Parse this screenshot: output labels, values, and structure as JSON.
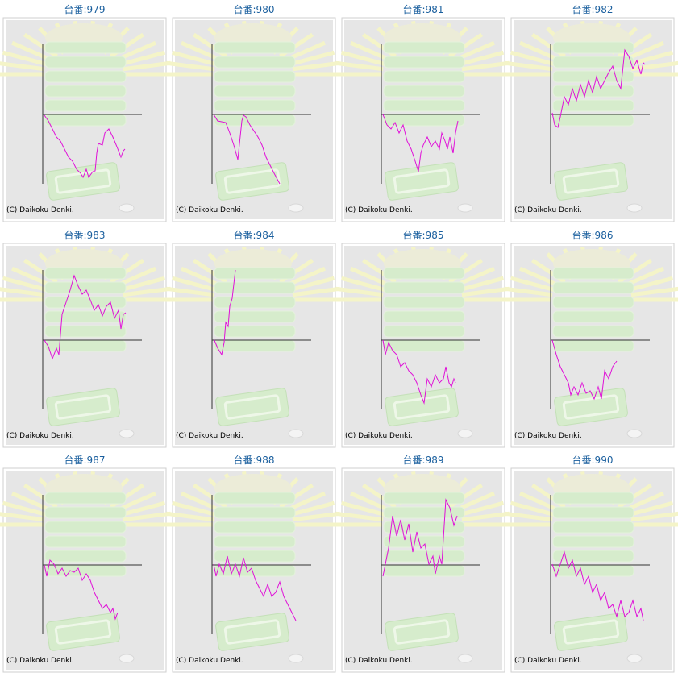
{
  "chart_data": [
    {
      "type": "line",
      "title": "台番:979",
      "credit": "(C) Daikoku Denki.",
      "xlim": [
        0,
        123
      ],
      "ylim": [
        -86,
        87
      ],
      "color": "#e010d8",
      "x": [
        2,
        7,
        12,
        17,
        22,
        27,
        32,
        37,
        42,
        47,
        50,
        54,
        57,
        62,
        65,
        67,
        69,
        74,
        77,
        82,
        87,
        92,
        97,
        100,
        102
      ],
      "values": [
        -1,
        -8,
        -18,
        -28,
        -33,
        -43,
        -53,
        -58,
        -68,
        -73,
        -78,
        -68,
        -78,
        -71,
        -70,
        -48,
        -36,
        -38,
        -23,
        -18,
        -28,
        -40,
        -53,
        -45,
        -43
      ]
    },
    {
      "type": "line",
      "title": "台番:980",
      "credit": "(C) Daikoku Denki.",
      "xlim": [
        0,
        123
      ],
      "ylim": [
        -86,
        87
      ],
      "color": "#e010d8",
      "x": [
        2,
        7,
        17,
        22,
        27,
        32,
        37,
        39,
        42,
        47,
        57,
        62,
        67,
        72,
        77,
        84
      ],
      "values": [
        0,
        -8,
        -10,
        -23,
        -38,
        -56,
        -8,
        -1,
        -3,
        -13,
        -28,
        -38,
        -53,
        -63,
        -73,
        -86
      ]
    },
    {
      "type": "line",
      "title": "台番:981",
      "credit": "(C) Daikoku Denki.",
      "xlim": [
        0,
        123
      ],
      "ylim": [
        -86,
        87
      ],
      "color": "#e010d8",
      "x": [
        2,
        7,
        12,
        17,
        22,
        27,
        32,
        37,
        42,
        46,
        49,
        52,
        57,
        62,
        67,
        72,
        75,
        79,
        82,
        85,
        89,
        92,
        95
      ],
      "values": [
        0,
        -13,
        -18,
        -10,
        -23,
        -13,
        -33,
        -43,
        -58,
        -71,
        -48,
        -38,
        -28,
        -40,
        -33,
        -43,
        -23,
        -33,
        -43,
        -28,
        -48,
        -23,
        -8
      ]
    },
    {
      "type": "line",
      "title": "台番:982",
      "credit": "(C) Daikoku Denki.",
      "xlim": [
        0,
        123
      ],
      "ylim": [
        -86,
        87
      ],
      "color": "#e010d8",
      "x": [
        2,
        5,
        9,
        12,
        17,
        22,
        27,
        32,
        37,
        42,
        47,
        52,
        57,
        62,
        67,
        72,
        77,
        82,
        87,
        92,
        97,
        102,
        107,
        112,
        115,
        117
      ],
      "values": [
        2,
        -13,
        -16,
        -3,
        22,
        12,
        32,
        17,
        37,
        22,
        42,
        27,
        47,
        32,
        42,
        52,
        60,
        42,
        32,
        80,
        72,
        57,
        67,
        50,
        64,
        62
      ]
    },
    {
      "type": "line",
      "title": "台番:983",
      "credit": "(C) Daikoku Denki.",
      "xlim": [
        0,
        123
      ],
      "ylim": [
        -86,
        87
      ],
      "color": "#e010d8",
      "x": [
        2,
        7,
        12,
        17,
        20,
        24,
        29,
        34,
        39,
        44,
        49,
        54,
        59,
        64,
        69,
        74,
        79,
        84,
        89,
        94,
        97,
        100,
        103
      ],
      "values": [
        0,
        -8,
        -23,
        -10,
        -18,
        32,
        47,
        62,
        80,
        67,
        57,
        62,
        50,
        37,
        44,
        30,
        42,
        47,
        27,
        37,
        14,
        32,
        34
      ]
    },
    {
      "type": "line",
      "title": "台番:984",
      "credit": "(C) Daikoku Denki.",
      "xlim": [
        0,
        123
      ],
      "ylim": [
        -86,
        87
      ],
      "color": "#e010d8",
      "x": [
        2,
        7,
        12,
        15,
        17,
        20,
        22,
        25,
        29
      ],
      "values": [
        2,
        -10,
        -18,
        -3,
        22,
        17,
        42,
        52,
        87
      ]
    },
    {
      "type": "line",
      "title": "台番:985",
      "credit": "(C) Daikoku Denki.",
      "xlim": [
        0,
        123
      ],
      "ylim": [
        -86,
        87
      ],
      "color": "#e010d8",
      "x": [
        2,
        5,
        9,
        14,
        19,
        24,
        29,
        34,
        39,
        44,
        49,
        53,
        57,
        62,
        67,
        72,
        77,
        80,
        84,
        87,
        90,
        92
      ],
      "values": [
        0,
        -18,
        -3,
        -13,
        -18,
        -33,
        -28,
        -38,
        -43,
        -53,
        -68,
        -78,
        -48,
        -58,
        -43,
        -53,
        -48,
        -33,
        -53,
        -58,
        -48,
        -53
      ]
    },
    {
      "type": "line",
      "title": "台番:986",
      "credit": "(C) Daikoku Denki.",
      "xlim": [
        0,
        123
      ],
      "ylim": [
        -86,
        87
      ],
      "color": "#e010d8",
      "x": [
        2,
        7,
        12,
        17,
        22,
        25,
        29,
        34,
        39,
        44,
        49,
        54,
        59,
        63,
        67,
        72,
        77,
        82
      ],
      "values": [
        0,
        -18,
        -33,
        -43,
        -53,
        -68,
        -58,
        -68,
        -53,
        -66,
        -63,
        -73,
        -58,
        -73,
        -38,
        -48,
        -33,
        -26
      ]
    },
    {
      "type": "line",
      "title": "台番:987",
      "credit": "(C) Daikoku Denki.",
      "xlim": [
        0,
        123
      ],
      "ylim": [
        -86,
        87
      ],
      "color": "#e010d8",
      "x": [
        2,
        5,
        9,
        14,
        19,
        24,
        29,
        34,
        39,
        44,
        49,
        54,
        59,
        64,
        69,
        74,
        79,
        84,
        87,
        90,
        93
      ],
      "values": [
        0,
        -14,
        6,
        1,
        -11,
        -4,
        -14,
        -7,
        -9,
        -4,
        -19,
        -11,
        -19,
        -34,
        -44,
        -54,
        -49,
        -59,
        -54,
        -67,
        -59
      ]
    },
    {
      "type": "line",
      "title": "台番:988",
      "credit": "(C) Daikoku Denki.",
      "xlim": [
        0,
        123
      ],
      "ylim": [
        -86,
        87
      ],
      "color": "#e010d8",
      "x": [
        2,
        5,
        9,
        14,
        19,
        24,
        29,
        34,
        39,
        44,
        49,
        54,
        59,
        64,
        69,
        74,
        79,
        84,
        89,
        94,
        99,
        104
      ],
      "values": [
        1,
        -14,
        1,
        -11,
        11,
        -11,
        1,
        -14,
        9,
        -9,
        -4,
        -19,
        -29,
        -39,
        -24,
        -39,
        -34,
        -21,
        -39,
        -49,
        -59,
        -69
      ]
    },
    {
      "type": "line",
      "title": "台番:989",
      "credit": "(C) Daikoku Denki.",
      "xlim": [
        0,
        123
      ],
      "ylim": [
        -86,
        87
      ],
      "color": "#e010d8",
      "x": [
        2,
        5,
        9,
        14,
        19,
        24,
        29,
        34,
        39,
        44,
        49,
        54,
        59,
        64,
        67,
        72,
        75,
        80,
        85,
        90,
        94
      ],
      "values": [
        -14,
        1,
        21,
        61,
        36,
        56,
        31,
        51,
        16,
        41,
        21,
        26,
        1,
        11,
        -11,
        11,
        1,
        81,
        71,
        49,
        61
      ]
    },
    {
      "type": "line",
      "title": "台番:990",
      "credit": "(C) Daikoku Denki.",
      "xlim": [
        0,
        123
      ],
      "ylim": [
        -86,
        87
      ],
      "color": "#e010d8",
      "x": [
        2,
        7,
        12,
        17,
        22,
        27,
        32,
        37,
        42,
        47,
        52,
        57,
        62,
        67,
        72,
        77,
        82,
        87,
        92,
        97,
        102,
        107,
        112,
        115
      ],
      "values": [
        1,
        -14,
        1,
        16,
        -4,
        6,
        -14,
        -4,
        -24,
        -14,
        -34,
        -24,
        -44,
        -34,
        -54,
        -49,
        -64,
        -44,
        -64,
        -59,
        -44,
        -64,
        -54,
        -69
      ]
    }
  ]
}
